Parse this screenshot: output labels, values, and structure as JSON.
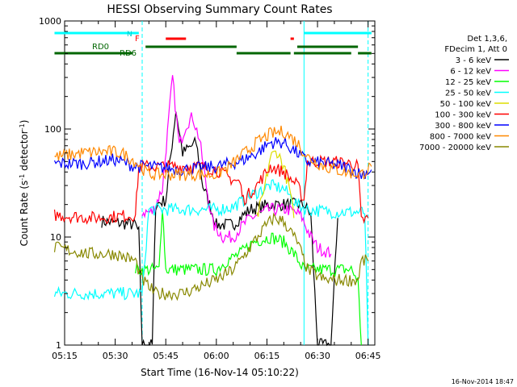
{
  "chart_data": {
    "type": "line",
    "title": "HESSI Observing Summary Count Rates",
    "xlabel": "Start Time (16-Nov-14 05:10:22)",
    "ylabel_main": "Count Rate (s",
    "ylabel_sup1": "-1",
    "ylabel_mid": " detector",
    "ylabel_sup2": "-1",
    "ylabel_end": ")",
    "yscale": "log",
    "ylim": [
      1,
      1000
    ],
    "xlim_minutes": [
      5.0,
      97.0
    ],
    "x_ticks": [
      "05:15",
      "05:30",
      "05:45",
      "06:00",
      "06:15",
      "06:30",
      "06:45"
    ],
    "y_ticks": [
      "1",
      "10",
      "100",
      "1000"
    ],
    "legend_header": [
      "Det 1,3,6,",
      "FDecim 1, Att 0"
    ],
    "legend_placement": "right",
    "footer": "16-Nov-2014 18:47",
    "flag_labels": {
      "n": "N",
      "f": "F",
      "rd0": "RD0",
      "rd6": "RD6"
    },
    "series": [
      {
        "name": "3 - 6 keV",
        "color": "#000000",
        "values": [
          [
            16,
            14
          ],
          [
            26,
            13
          ],
          [
            27,
            11
          ],
          [
            28,
            1
          ],
          [
            31,
            1
          ],
          [
            32,
            20
          ],
          [
            35,
            22
          ],
          [
            38,
            150
          ],
          [
            40,
            60
          ],
          [
            44,
            75
          ],
          [
            46,
            30
          ],
          [
            48,
            20
          ],
          [
            50,
            13
          ],
          [
            55,
            13
          ],
          [
            57,
            15
          ],
          [
            60,
            18
          ],
          [
            66,
            20
          ],
          [
            72,
            20
          ],
          [
            76,
            20
          ],
          [
            78,
            16
          ],
          [
            80,
            1
          ],
          [
            84,
            1
          ],
          [
            86,
            15
          ]
        ]
      },
      {
        "name": "6 - 12 keV",
        "color": "#ff00ff",
        "values": [
          [
            28,
            17
          ],
          [
            31,
            17
          ],
          [
            34,
            28
          ],
          [
            37,
            300
          ],
          [
            39,
            70
          ],
          [
            41,
            110
          ],
          [
            43,
            130
          ],
          [
            45,
            80
          ],
          [
            47,
            30
          ],
          [
            49,
            13
          ],
          [
            52,
            10
          ],
          [
            55,
            10
          ],
          [
            57,
            12
          ],
          [
            60,
            15
          ],
          [
            66,
            18
          ],
          [
            71,
            18
          ],
          [
            75,
            16
          ],
          [
            78,
            10
          ],
          [
            80,
            8
          ],
          [
            84,
            7
          ]
        ]
      },
      {
        "name": "12 - 25 keV",
        "color": "#00ff00",
        "values": [
          [
            26,
            5
          ],
          [
            28,
            5
          ],
          [
            31,
            5
          ],
          [
            33,
            5
          ],
          [
            34,
            20
          ],
          [
            35,
            5
          ],
          [
            45,
            5
          ],
          [
            50,
            5
          ],
          [
            53,
            6
          ],
          [
            57,
            7
          ],
          [
            61,
            9
          ],
          [
            66,
            10
          ],
          [
            70,
            9
          ],
          [
            73,
            7
          ],
          [
            76,
            5
          ],
          [
            80,
            5
          ],
          [
            90,
            5
          ],
          [
            92,
            4
          ],
          [
            93,
            1
          ]
        ]
      },
      {
        "name": "25 - 50 keV",
        "color": "#00ffff",
        "values": [
          [
            2,
            3
          ],
          [
            28,
            3
          ],
          [
            30,
            18
          ],
          [
            45,
            18
          ],
          [
            50,
            18
          ],
          [
            55,
            19
          ],
          [
            60,
            24
          ],
          [
            66,
            30
          ],
          [
            70,
            28
          ],
          [
            74,
            20
          ],
          [
            77,
            18
          ],
          [
            85,
            17
          ],
          [
            94,
            17
          ],
          [
            95,
            1
          ]
        ]
      },
      {
        "name": "50 - 100 keV",
        "color": "#dddd00",
        "values": [
          [
            62,
            15
          ],
          [
            64,
            25
          ],
          [
            66,
            55
          ],
          [
            68,
            62
          ],
          [
            70,
            45
          ],
          [
            72,
            25
          ],
          [
            73,
            15
          ]
        ]
      },
      {
        "name": "100 - 300 keV",
        "color": "#ff0000",
        "values": [
          [
            2,
            16
          ],
          [
            14,
            15
          ],
          [
            26,
            16
          ],
          [
            27,
            45
          ],
          [
            31,
            45
          ],
          [
            35,
            45
          ],
          [
            40,
            45
          ],
          [
            45,
            45
          ],
          [
            50,
            42
          ],
          [
            54,
            35
          ],
          [
            57,
            32
          ],
          [
            58,
            22
          ],
          [
            62,
            30
          ],
          [
            66,
            45
          ],
          [
            70,
            40
          ],
          [
            74,
            30
          ],
          [
            76,
            22
          ],
          [
            77,
            50
          ],
          [
            79,
            50
          ],
          [
            84,
            50
          ],
          [
            90,
            48
          ],
          [
            92,
            45
          ],
          [
            93,
            14
          ],
          [
            95,
            15
          ]
        ]
      },
      {
        "name": "300 - 800 keV",
        "color": "#0000ff",
        "values": [
          [
            2,
            48
          ],
          [
            10,
            48
          ],
          [
            20,
            52
          ],
          [
            26,
            45
          ],
          [
            30,
            45
          ],
          [
            40,
            42
          ],
          [
            50,
            45
          ],
          [
            57,
            50
          ],
          [
            62,
            60
          ],
          [
            66,
            75
          ],
          [
            70,
            75
          ],
          [
            74,
            60
          ],
          [
            77,
            50
          ],
          [
            82,
            48
          ],
          [
            88,
            45
          ],
          [
            93,
            38
          ],
          [
            96,
            42
          ]
        ]
      },
      {
        "name": "800 - 7000 keV",
        "color": "#ff8800",
        "values": [
          [
            2,
            55
          ],
          [
            10,
            60
          ],
          [
            18,
            62
          ],
          [
            22,
            60
          ],
          [
            26,
            50
          ],
          [
            30,
            38
          ],
          [
            40,
            38
          ],
          [
            50,
            38
          ],
          [
            54,
            45
          ],
          [
            57,
            55
          ],
          [
            62,
            75
          ],
          [
            66,
            90
          ],
          [
            70,
            95
          ],
          [
            74,
            75
          ],
          [
            77,
            55
          ],
          [
            82,
            45
          ],
          [
            88,
            40
          ],
          [
            93,
            38
          ],
          [
            96,
            45
          ]
        ]
      },
      {
        "name": "7000 - 20000 keV",
        "color": "#888800",
        "values": [
          [
            2,
            8
          ],
          [
            12,
            7
          ],
          [
            20,
            7
          ],
          [
            26,
            6
          ],
          [
            28,
            4
          ],
          [
            32,
            3
          ],
          [
            40,
            3
          ],
          [
            50,
            4
          ],
          [
            55,
            5
          ],
          [
            60,
            8
          ],
          [
            64,
            12
          ],
          [
            67,
            15
          ],
          [
            70,
            14
          ],
          [
            74,
            9
          ],
          [
            77,
            5
          ],
          [
            82,
            4
          ],
          [
            88,
            4
          ],
          [
            92,
            4
          ],
          [
            93,
            6
          ],
          [
            95,
            6
          ]
        ]
      }
    ],
    "flags": [
      {
        "name": "n_flag",
        "color": "#00ffff",
        "segments": [
          [
            2,
            27
          ],
          [
            76,
            96
          ]
        ],
        "level": 1
      },
      {
        "name": "f_flag",
        "color": "#ff0000",
        "segments": [
          [
            35,
            41
          ],
          [
            72,
            73
          ]
        ],
        "level": 2
      },
      {
        "name": "rd0_flag",
        "color": "#006600",
        "segments": [
          [
            29,
            56
          ],
          [
            74,
            92
          ]
        ],
        "level": 3
      },
      {
        "name": "rd6_flag",
        "color": "#006600",
        "segments": [
          [
            2,
            25
          ],
          [
            56,
            72
          ],
          [
            73,
            90
          ],
          [
            92,
            96
          ]
        ],
        "level": 4
      }
    ],
    "vlines": [
      {
        "x": 28,
        "color": "#00ffff",
        "style": "dashed"
      },
      {
        "x": 76,
        "color": "#00ffff",
        "style": "solid"
      },
      {
        "x": 95,
        "color": "#00ffff",
        "style": "dashed"
      }
    ]
  }
}
